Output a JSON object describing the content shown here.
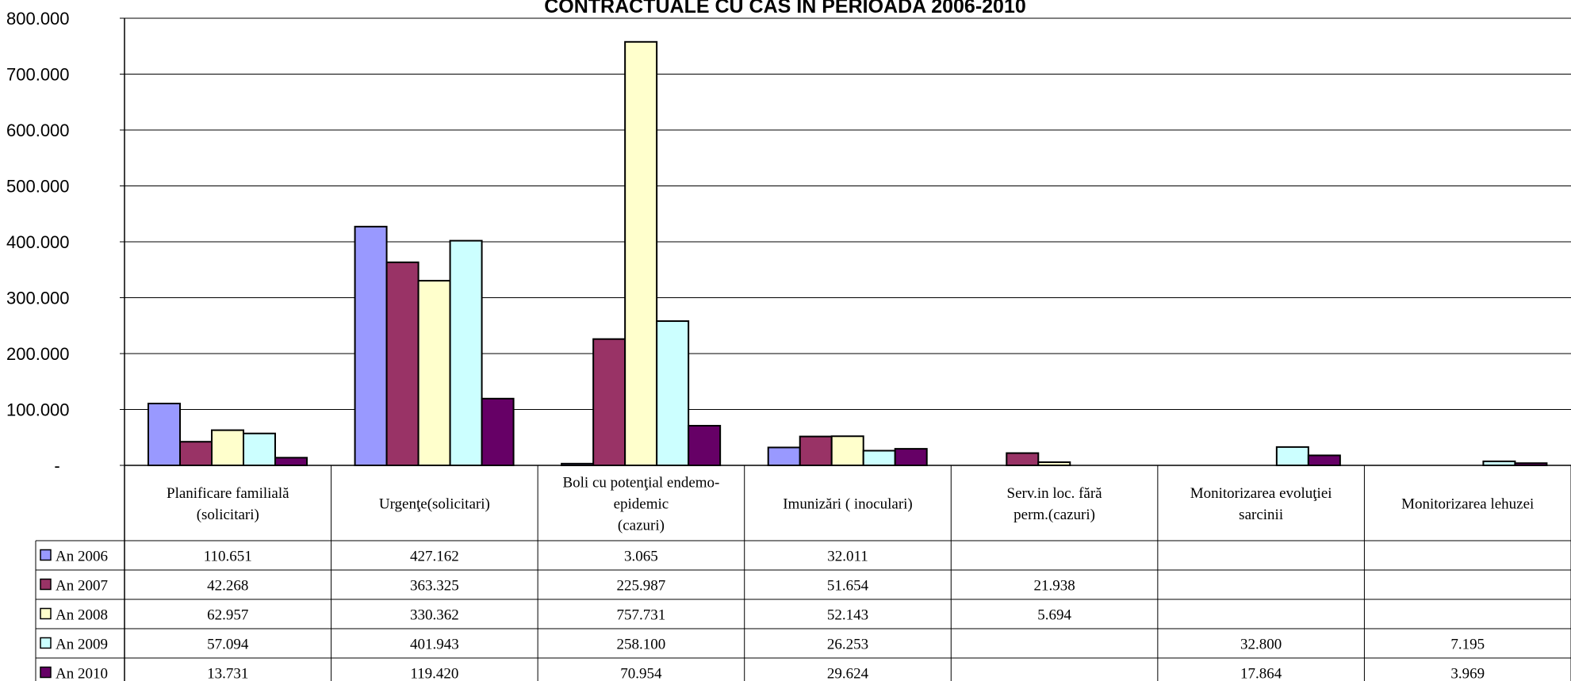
{
  "chart_data": {
    "type": "bar",
    "title": "CONTRACTUALE CU CAS IN PERIOADA 2006-2010",
    "ylim": [
      0,
      800000
    ],
    "y_ticks": [
      {
        "value": 0,
        "label": "-"
      },
      {
        "value": 100000,
        "label": "100.000"
      },
      {
        "value": 200000,
        "label": "200.000"
      },
      {
        "value": 300000,
        "label": "300.000"
      },
      {
        "value": 400000,
        "label": "400.000"
      },
      {
        "value": 500000,
        "label": "500.000"
      },
      {
        "value": 600000,
        "label": "600.000"
      },
      {
        "value": 700000,
        "label": "700.000"
      },
      {
        "value": 800000,
        "label": "800.000"
      }
    ],
    "grid": true,
    "legend": "data-table-left",
    "categories": [
      [
        "Planificare familială",
        "(solicitari)"
      ],
      [
        "Urgenţe(solicitari)"
      ],
      [
        "Boli cu potenţial endemo-",
        "epidemic",
        "(cazuri)"
      ],
      [
        "Imunizări ( inoculari)"
      ],
      [
        "Serv.in loc. fără",
        "perm.(cazuri)"
      ],
      [
        "Monitorizarea evoluţiei",
        "sarcinii"
      ],
      [
        "Monitorizarea lehuzei"
      ]
    ],
    "series": [
      {
        "name": "An 2006",
        "color": "#9999ff",
        "values": [
          110651,
          427162,
          3065,
          32011,
          null,
          null,
          null
        ],
        "labels": [
          "110.651",
          "427.162",
          "3.065",
          "32.011",
          "",
          "",
          ""
        ]
      },
      {
        "name": "An 2007",
        "color": "#993366",
        "values": [
          42268,
          363325,
          225987,
          51654,
          21938,
          null,
          null
        ],
        "labels": [
          "42.268",
          "363.325",
          "225.987",
          "51.654",
          "21.938",
          "",
          ""
        ]
      },
      {
        "name": "An 2008",
        "color": "#ffffcc",
        "values": [
          62957,
          330362,
          757731,
          52143,
          5694,
          null,
          null
        ],
        "labels": [
          "62.957",
          "330.362",
          "757.731",
          "52.143",
          "5.694",
          "",
          ""
        ]
      },
      {
        "name": "An 2009",
        "color": "#ccffff",
        "values": [
          57094,
          401943,
          258100,
          26253,
          null,
          32800,
          7195
        ],
        "labels": [
          "57.094",
          "401.943",
          "258.100",
          "26.253",
          "",
          "32.800",
          "7.195"
        ]
      },
      {
        "name": "An 2010",
        "color": "#660066",
        "values": [
          13731,
          119420,
          70954,
          29624,
          null,
          17864,
          3969
        ],
        "labels": [
          "13.731",
          "119.420",
          "70.954",
          "29.624",
          "",
          "17.864",
          "3.969"
        ]
      }
    ]
  }
}
